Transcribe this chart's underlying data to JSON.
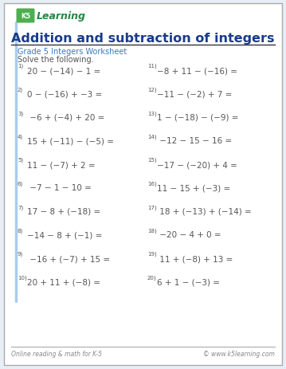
{
  "title": "Addition and subtraction of integers",
  "subtitle": "Grade 5 Integers Worksheet",
  "instruction": "Solve the following.",
  "footer_left": "Online reading & math for K-5",
  "footer_right": "© www.k5learning.com",
  "title_color": "#1a3a8a",
  "subtitle_color": "#3a7abf",
  "text_color": "#555555",
  "border_color": "#aaaaaa",
  "bg_color": "#e8eef5",
  "white": "#ffffff",
  "left_problems": [
    {
      "num": "1)",
      "expr": "20 − (−14) − 1 ="
    },
    {
      "num": "2)",
      "expr": "0 − (−16) + −3 ="
    },
    {
      "num": "3)",
      "expr": " −6 + (−4) + 20 ="
    },
    {
      "num": "4)",
      "expr": "15 + (−11) − (−5) ="
    },
    {
      "num": "5)",
      "expr": "11 − (−7) + 2 ="
    },
    {
      "num": "6)",
      "expr": " −7 − 1 − 10 ="
    },
    {
      "num": "7)",
      "expr": "17 − 8 + (−18) ="
    },
    {
      "num": "8)",
      "expr": "−14 − 8 + (−1) ="
    },
    {
      "num": "9)",
      "expr": " −16 + (−7) + 15 ="
    },
    {
      "num": "10)",
      "expr": "20 + 11 + (−8) ="
    }
  ],
  "right_problems": [
    {
      "num": "11)",
      "expr": "−8 + 11 − (−16) ="
    },
    {
      "num": "12)",
      "expr": "−11 − (−2) + 7 ="
    },
    {
      "num": "13)",
      "expr": "1 − (−18) − (−9) ="
    },
    {
      "num": "14)",
      "expr": " −12 − 15 − 16 ="
    },
    {
      "num": "15)",
      "expr": "−17 − (−20) + 4 ="
    },
    {
      "num": "16)",
      "expr": "11 − 15 + (−3) ="
    },
    {
      "num": "17)",
      "expr": " 18 + (−13) + (−14) ="
    },
    {
      "num": "18)",
      "expr": " −20 − 4 + 0 ="
    },
    {
      "num": "19)",
      "expr": " 11 + (−8) + 13 ="
    },
    {
      "num": "20)",
      "expr": "6 + 1 − (−3) ="
    }
  ]
}
